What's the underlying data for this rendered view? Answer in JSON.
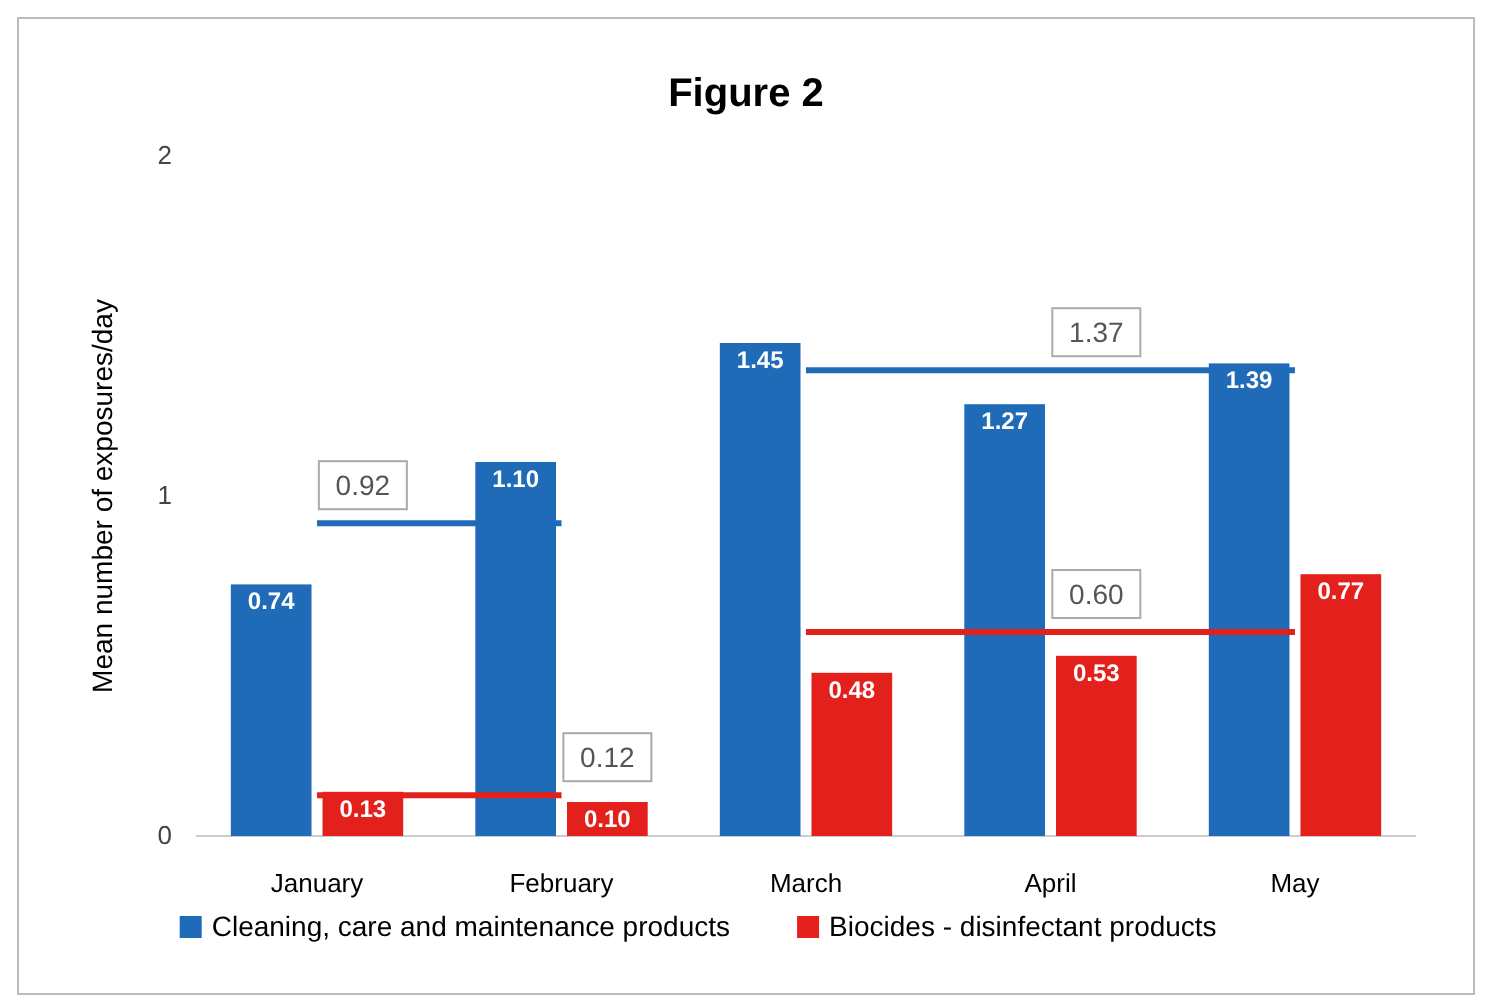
{
  "chart_data": {
    "type": "bar",
    "title": "Figure 2",
    "ylabel": "Mean number of exposures/day",
    "categories": [
      "January",
      "February",
      "March",
      "April",
      "May"
    ],
    "series": [
      {
        "name": "Cleaning, care and maintenance products",
        "color": "#1f6bb8",
        "values": [
          0.74,
          1.1,
          1.45,
          1.27,
          1.39
        ],
        "value_labels": [
          "0.74",
          "1.10",
          "1.45",
          "1.27",
          "1.39"
        ]
      },
      {
        "name": "Biocides - disinfectant products",
        "color": "#e3201b",
        "values": [
          0.13,
          0.1,
          0.48,
          0.53,
          0.77
        ],
        "value_labels": [
          "0.13",
          "0.10",
          "0.48",
          "0.53",
          "0.77"
        ]
      },
      {
        "type": "line",
        "color": "#1f6bb8",
        "values": [
          0.92,
          0.92,
          null,
          null,
          null
        ],
        "value_labels": [
          "0.92",
          null,
          null,
          null,
          null
        ]
      },
      {
        "type": "line",
        "color": "#e3201b",
        "values": [
          0.12,
          0.12,
          null,
          null,
          null
        ],
        "value_labels": [
          null,
          "0.12",
          null,
          null,
          null
        ]
      },
      {
        "type": "line",
        "color": "#1f6bb8",
        "values": [
          null,
          null,
          1.37,
          1.37,
          1.37
        ],
        "value_labels": [
          null,
          null,
          null,
          "1.37",
          null
        ]
      },
      {
        "type": "line",
        "color": "#e3201b",
        "values": [
          null,
          null,
          0.6,
          0.6,
          0.6
        ],
        "value_labels": [
          null,
          null,
          null,
          "0.60",
          null
        ]
      }
    ],
    "ylim": [
      0,
      2
    ],
    "yticks": [
      0,
      1,
      2
    ],
    "legend": "bottom",
    "grid": false
  }
}
